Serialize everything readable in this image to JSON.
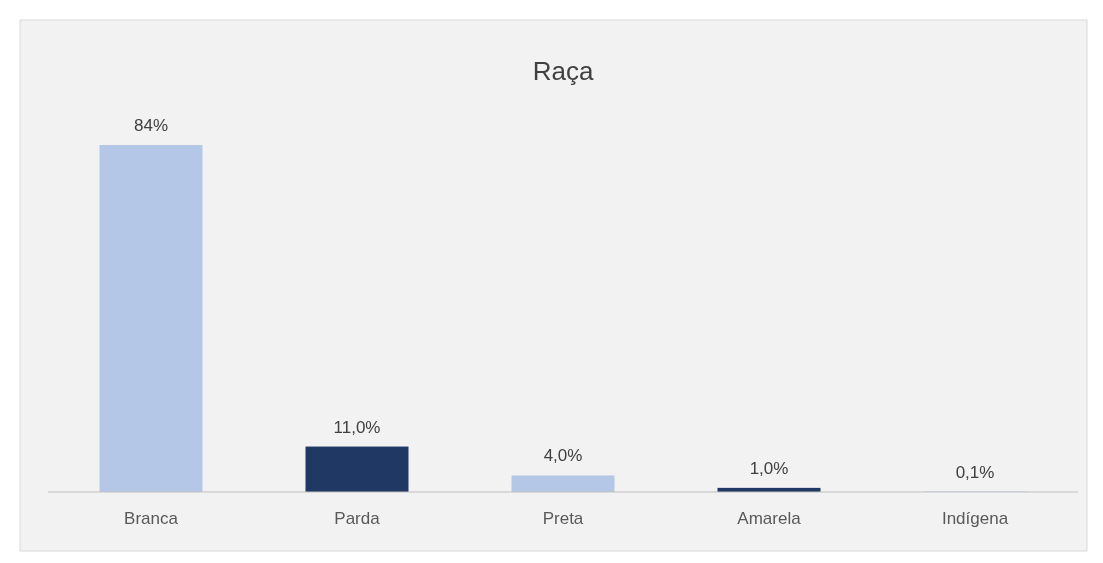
{
  "chart_data": {
    "type": "bar",
    "title": "Raça",
    "categories": [
      "Branca",
      "Parda",
      "Preta",
      "Amarela",
      "Indígena"
    ],
    "values": [
      84,
      11.0,
      4.0,
      1.0,
      0.1
    ],
    "colors": [
      "#b4c7e7",
      "#203864",
      "#b4c7e7",
      "#203864",
      "#b4c7e7"
    ],
    "value_labels": [
      "84%",
      "11,0%",
      "4,0%",
      "1,0%",
      "0,1%"
    ]
  }
}
